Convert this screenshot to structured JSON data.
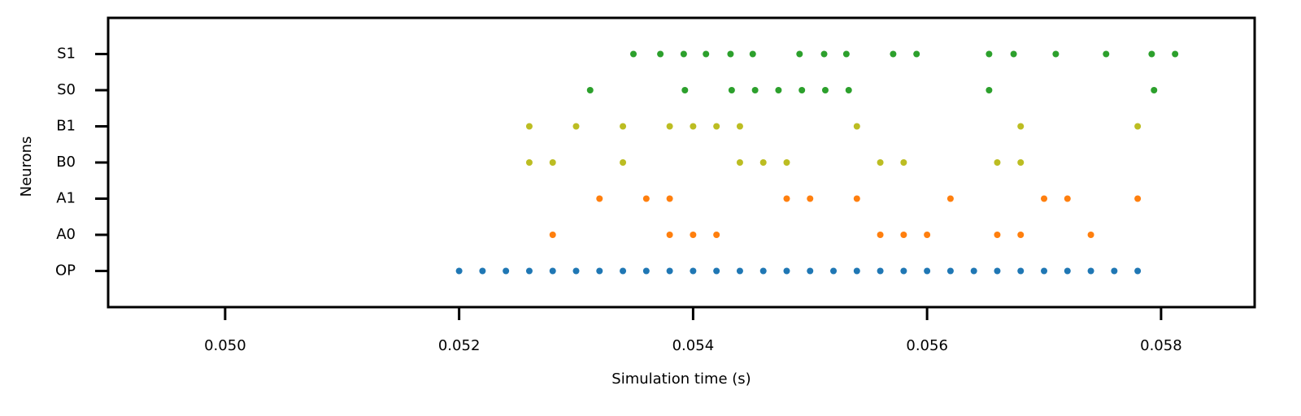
{
  "chart_data": {
    "type": "raster",
    "xlabel": "Simulation time (s)",
    "ylabel": "Neurons",
    "xlim": [
      0.049,
      0.0588
    ],
    "xticks": [
      {
        "value": 0.05,
        "label": "0.050"
      },
      0.052,
      0.054,
      0.056,
      0.058
    ],
    "rows": [
      {
        "label": "OP",
        "color": "#1f77b4",
        "x": [
          0.052,
          0.0522,
          0.0524,
          0.0526,
          0.0528,
          0.053,
          0.0532,
          0.0534,
          0.0536,
          0.0538,
          0.054,
          0.0542,
          0.0544,
          0.0546,
          0.0548,
          0.055,
          0.0552,
          0.0554,
          0.0556,
          0.0558,
          0.056,
          0.0562,
          0.0564,
          0.0566,
          0.0568,
          0.057,
          0.0572,
          0.0574,
          0.0576,
          0.0578
        ]
      },
      {
        "label": "A0",
        "color": "#ff7f0e",
        "x": [
          0.0528,
          0.0538,
          0.054,
          0.0542,
          0.0556,
          0.0558,
          0.056,
          0.0566,
          0.0568,
          0.0574
        ]
      },
      {
        "label": "A1",
        "color": "#ff7f0e",
        "x": [
          0.0532,
          0.0536,
          0.0538,
          0.0548,
          0.055,
          0.0554,
          0.0562,
          0.057,
          0.0572,
          0.0578
        ]
      },
      {
        "label": "B0",
        "color": "#bcbd22",
        "x": [
          0.0526,
          0.0528,
          0.0534,
          0.0544,
          0.0546,
          0.0548,
          0.0556,
          0.0558,
          0.0566,
          0.0568
        ]
      },
      {
        "label": "B1",
        "color": "#bcbd22",
        "x": [
          0.0526,
          0.053,
          0.0534,
          0.0538,
          0.054,
          0.0542,
          0.0544,
          0.0554,
          0.0568,
          0.0578
        ]
      },
      {
        "label": "S0",
        "color": "#2ca02c",
        "x": [
          0.05312,
          0.05393,
          0.05433,
          0.05453,
          0.05473,
          0.05493,
          0.05513,
          0.05533,
          0.05653,
          0.05794
        ]
      },
      {
        "label": "S1",
        "color": "#2ca02c",
        "x": [
          0.05349,
          0.05372,
          0.05392,
          0.05411,
          0.05432,
          0.05451,
          0.05491,
          0.05512,
          0.05531,
          0.05571,
          0.05591,
          0.05653,
          0.05674,
          0.0571,
          0.05753,
          0.05792,
          0.05812
        ]
      }
    ]
  }
}
